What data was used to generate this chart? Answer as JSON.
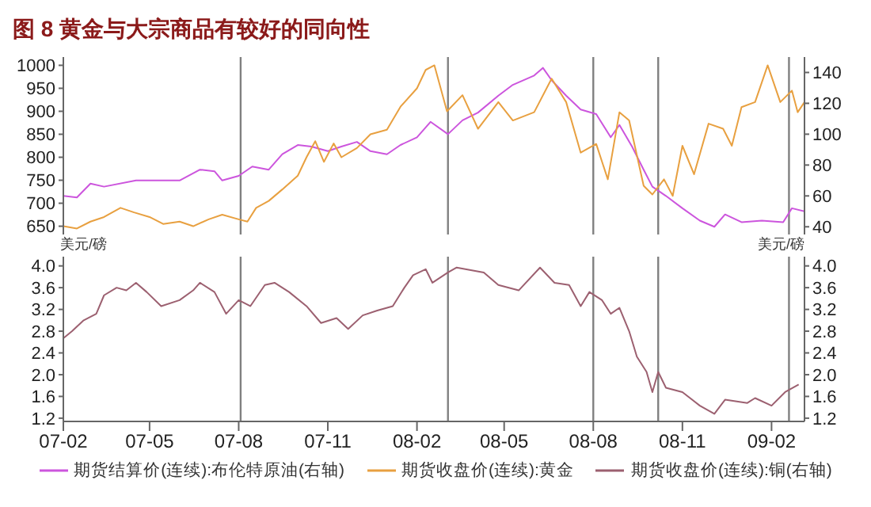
{
  "chart_data": [
    {
      "type": "line",
      "title": "图 8  黄金与大宗商品有较好的同向性",
      "tick_labels": "y",
      "legend": "bottom",
      "marker": "none",
      "line_style": "solid",
      "xlim": [
        "2007-02-01",
        "2009-03-07"
      ],
      "ylim": [
        632,
        1018
      ],
      "yticks": [
        650,
        700,
        750,
        800,
        850,
        900,
        950,
        1000
      ],
      "y2lim": [
        35,
        150
      ],
      "y2ticks": [
        40,
        60,
        80,
        100,
        120,
        140
      ],
      "ref_lines": [
        {
          "axis": "x",
          "value": "2007-08-03",
          "color": "#808080"
        },
        {
          "axis": "x",
          "value": "2008-03-04",
          "color": "#808080"
        },
        {
          "axis": "x",
          "value": "2008-08-01",
          "color": "#808080"
        },
        {
          "axis": "x",
          "value": "2008-10-07",
          "color": "#808080"
        },
        {
          "axis": "x",
          "value": "2009-02-19",
          "color": "#808080"
        }
      ],
      "series": [
        {
          "name": "期货结算价(连续):布伦特原油(右轴)",
          "color": "#cc55dd",
          "axis": "y2",
          "x": [
            "2007-02-01",
            "2007-02-15",
            "2007-03-01",
            "2007-03-15",
            "2007-04-17",
            "2007-06-01",
            "2007-06-22",
            "2007-07-07",
            "2007-07-15",
            "2007-08-01",
            "2007-08-15",
            "2007-09-01",
            "2007-09-15",
            "2007-10-01",
            "2007-10-15",
            "2007-11-01",
            "2007-11-15",
            "2007-12-01",
            "2007-12-15",
            "2008-01-01",
            "2008-01-15",
            "2008-02-01",
            "2008-02-15",
            "2008-03-04",
            "2008-03-19",
            "2008-04-04",
            "2008-04-25",
            "2008-05-10",
            "2008-06-01",
            "2008-06-10",
            "2008-06-19",
            "2008-07-04",
            "2008-07-19",
            "2008-08-04",
            "2008-08-19",
            "2008-08-28",
            "2008-09-10",
            "2008-09-22",
            "2008-10-01",
            "2008-10-15",
            "2008-11-01",
            "2008-11-19",
            "2008-12-04",
            "2008-12-15",
            "2009-01-01",
            "2009-01-22",
            "2009-02-13",
            "2009-02-22",
            "2009-03-07"
          ],
          "values": [
            60,
            59,
            68,
            66,
            70,
            70,
            77,
            76,
            70,
            73,
            79,
            77,
            87,
            93,
            92,
            89,
            92,
            95,
            89,
            87,
            93,
            98,
            108,
            100,
            109,
            114,
            125,
            132,
            138,
            143,
            135,
            125,
            116,
            113,
            98,
            106,
            92,
            77,
            66,
            60,
            52,
            44,
            40,
            48,
            43,
            44,
            43,
            52,
            50
          ]
        },
        {
          "name": "期货收盘价(连续):黄金",
          "color": "#e8a040",
          "x": [
            "2007-02-01",
            "2007-02-15",
            "2007-03-01",
            "2007-03-15",
            "2007-04-01",
            "2007-04-15",
            "2007-05-01",
            "2007-05-15",
            "2007-06-01",
            "2007-06-15",
            "2007-07-01",
            "2007-07-15",
            "2007-08-01",
            "2007-08-10",
            "2007-08-19",
            "2007-09-01",
            "2007-09-15",
            "2007-10-01",
            "2007-10-10",
            "2007-10-19",
            "2007-10-28",
            "2007-11-07",
            "2007-11-15",
            "2007-12-01",
            "2007-12-15",
            "2008-01-01",
            "2008-01-15",
            "2008-02-01",
            "2008-02-10",
            "2008-02-19",
            "2008-03-03",
            "2008-03-19",
            "2008-04-04",
            "2008-04-25",
            "2008-05-10",
            "2008-06-01",
            "2008-06-19",
            "2008-07-04",
            "2008-07-19",
            "2008-08-04",
            "2008-08-16",
            "2008-08-28",
            "2008-09-07",
            "2008-09-22",
            "2008-10-01",
            "2008-10-13",
            "2008-10-22",
            "2008-11-01",
            "2008-11-13",
            "2008-11-28",
            "2008-12-13",
            "2008-12-22",
            "2009-01-01",
            "2009-01-15",
            "2009-01-28",
            "2009-02-10",
            "2009-02-22",
            "2009-02-28",
            "2009-03-07"
          ],
          "values": [
            650,
            645,
            660,
            670,
            690,
            680,
            670,
            655,
            660,
            650,
            665,
            675,
            665,
            660,
            690,
            705,
            730,
            760,
            800,
            835,
            790,
            830,
            800,
            820,
            850,
            860,
            910,
            950,
            990,
            1000,
            900,
            935,
            862,
            920,
            880,
            898,
            971,
            920,
            810,
            829,
            752,
            898,
            880,
            738,
            719,
            752,
            716,
            825,
            763,
            873,
            862,
            825,
            909,
            920,
            1000,
            920,
            945,
            898,
            920
          ]
        }
      ]
    },
    {
      "type": "line",
      "legend": "bottom",
      "marker": "none",
      "line_style": "solid",
      "ylabel": "美元/磅",
      "y2label": "美元/磅",
      "xlim": [
        "2007-02-01",
        "2009-03-07"
      ],
      "xticks": [
        {
          "value": "2007-02-01",
          "label": "07-02"
        },
        {
          "value": "2007-05-01",
          "label": "07-05"
        },
        {
          "value": "2007-08-01",
          "label": "07-08"
        },
        {
          "value": "2007-11-01",
          "label": "07-11"
        },
        {
          "value": "2008-02-01",
          "label": "08-02"
        },
        {
          "value": "2008-05-01",
          "label": "08-05"
        },
        {
          "value": "2008-08-01",
          "label": "08-08"
        },
        {
          "value": "2008-11-01",
          "label": "08-11"
        },
        {
          "value": "2009-02-01",
          "label": "09-02"
        }
      ],
      "ylim": [
        1.14,
        4.17
      ],
      "yticks": [
        1.2,
        1.6,
        {
          "value": 2,
          "label": "2.0"
        },
        2.4,
        2.8,
        3.2,
        3.6,
        {
          "value": 4,
          "label": "4.0"
        }
      ],
      "y2lim": [
        1.14,
        4.17
      ],
      "y2ticks": [
        1.2,
        1.6,
        {
          "value": 2,
          "label": "2.0"
        },
        2.4,
        2.8,
        3.2,
        3.6,
        {
          "value": 4,
          "label": "4.0"
        }
      ],
      "ref_lines": [
        {
          "axis": "x",
          "value": "2007-08-03",
          "color": "#808080"
        },
        {
          "axis": "x",
          "value": "2008-03-04",
          "color": "#808080"
        },
        {
          "axis": "x",
          "value": "2008-08-01",
          "color": "#808080"
        },
        {
          "axis": "x",
          "value": "2008-10-07",
          "color": "#808080"
        },
        {
          "axis": "x",
          "value": "2009-02-19",
          "color": "#808080"
        }
      ],
      "series": [
        {
          "name": "期货收盘价(连续):铜(右轴)",
          "color": "#9c6070",
          "axis": "y2",
          "x": [
            "2007-02-01",
            "2007-02-10",
            "2007-02-22",
            "2007-03-07",
            "2007-03-15",
            "2007-03-28",
            "2007-04-07",
            "2007-04-17",
            "2007-04-28",
            "2007-05-13",
            "2007-06-01",
            "2007-06-15",
            "2007-06-22",
            "2007-07-07",
            "2007-07-19",
            "2007-08-01",
            "2007-08-13",
            "2007-08-28",
            "2007-09-07",
            "2007-09-22",
            "2007-10-10",
            "2007-10-25",
            "2007-11-10",
            "2007-11-22",
            "2007-12-07",
            "2007-12-22",
            "2008-01-07",
            "2008-01-19",
            "2008-01-28",
            "2008-02-10",
            "2008-02-17",
            "2008-03-04",
            "2008-03-13",
            "2008-04-10",
            "2008-04-25",
            "2008-05-16",
            "2008-06-07",
            "2008-06-22",
            "2008-07-07",
            "2008-07-19",
            "2008-07-28",
            "2008-08-10",
            "2008-08-19",
            "2008-08-28",
            "2008-09-07",
            "2008-09-15",
            "2008-09-25",
            "2008-10-01",
            "2008-10-07",
            "2008-10-15",
            "2008-11-01",
            "2008-11-19",
            "2008-12-04",
            "2008-12-15",
            "2009-01-07",
            "2009-01-15",
            "2009-02-01",
            "2009-02-15",
            "2009-03-01"
          ],
          "values": [
            2.67,
            2.8,
            3.0,
            3.12,
            3.46,
            3.6,
            3.55,
            3.69,
            3.52,
            3.26,
            3.37,
            3.55,
            3.69,
            3.52,
            3.12,
            3.37,
            3.26,
            3.65,
            3.69,
            3.52,
            3.26,
            2.95,
            3.04,
            2.84,
            3.09,
            3.18,
            3.26,
            3.6,
            3.83,
            3.94,
            3.69,
            3.88,
            3.97,
            3.88,
            3.65,
            3.55,
            3.97,
            3.69,
            3.65,
            3.26,
            3.52,
            3.37,
            3.12,
            3.23,
            2.8,
            2.33,
            2.05,
            1.68,
            2.05,
            1.76,
            1.68,
            1.43,
            1.28,
            1.54,
            1.48,
            1.57,
            1.43,
            1.68,
            1.82
          ]
        }
      ]
    }
  ]
}
